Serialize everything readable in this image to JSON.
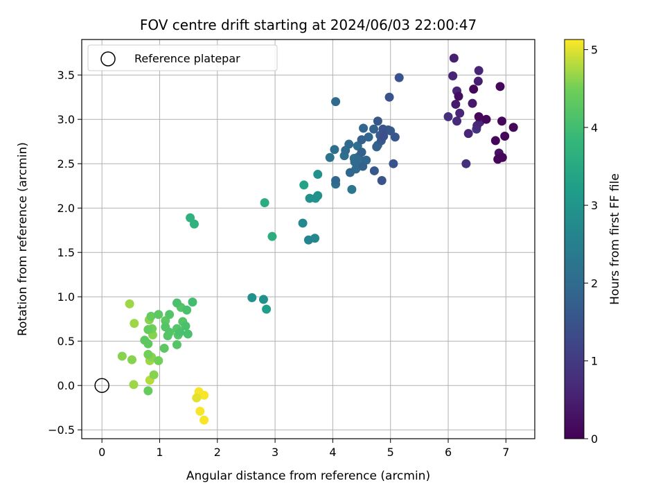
{
  "chart_data": {
    "type": "scatter",
    "title": "FOV centre drift starting at 2024/06/03 22:00:47",
    "xlabel": "Angular distance from reference (arcmin)",
    "ylabel": "Rotation from reference (arcmin)",
    "xlim": [
      -0.35,
      7.5
    ],
    "ylim": [
      -0.6,
      3.9
    ],
    "x_ticks": [
      0,
      1,
      2,
      3,
      4,
      5,
      6,
      7
    ],
    "x_tick_labels": [
      "0",
      "1",
      "2",
      "3",
      "4",
      "5",
      "6",
      "7"
    ],
    "y_ticks": [
      -0.5,
      0.0,
      0.5,
      1.0,
      1.5,
      2.0,
      2.5,
      3.0,
      3.5
    ],
    "y_tick_labels": [
      "−0.5",
      "0.0",
      "0.5",
      "1.0",
      "1.5",
      "2.0",
      "2.5",
      "3.0",
      "3.5"
    ],
    "grid": true,
    "legend": {
      "label": "Reference platepar",
      "placement": "top-left"
    },
    "reference_point": {
      "x": 0,
      "y": 0
    },
    "colorbar": {
      "label": "Hours from first FF file",
      "colormap": "viridis",
      "range": [
        0,
        5.13
      ],
      "ticks": [
        0,
        1,
        2,
        3,
        4,
        5
      ],
      "tick_labels": [
        "0",
        "1",
        "2",
        "3",
        "4",
        "5"
      ]
    },
    "points": [
      {
        "x": 6.1,
        "y": 3.69,
        "c": 0.5
      },
      {
        "x": 6.08,
        "y": 3.49,
        "c": 0.6
      },
      {
        "x": 6.53,
        "y": 3.55,
        "c": 0.6
      },
      {
        "x": 6.52,
        "y": 3.43,
        "c": 0.5
      },
      {
        "x": 6.44,
        "y": 3.34,
        "c": 0.1
      },
      {
        "x": 6.9,
        "y": 3.37,
        "c": 0.1
      },
      {
        "x": 6.15,
        "y": 3.32,
        "c": 0.6
      },
      {
        "x": 6.18,
        "y": 3.26,
        "c": 0.2
      },
      {
        "x": 6.13,
        "y": 3.17,
        "c": 0.4
      },
      {
        "x": 6.42,
        "y": 3.18,
        "c": 0.4
      },
      {
        "x": 6.2,
        "y": 3.07,
        "c": 0.6
      },
      {
        "x": 6.0,
        "y": 3.03,
        "c": 0.8
      },
      {
        "x": 6.53,
        "y": 3.03,
        "c": 0.1
      },
      {
        "x": 6.66,
        "y": 3.0,
        "c": 0.1
      },
      {
        "x": 6.15,
        "y": 2.98,
        "c": 0.7
      },
      {
        "x": 6.55,
        "y": 2.97,
        "c": 0.6
      },
      {
        "x": 6.93,
        "y": 2.98,
        "c": 0.1
      },
      {
        "x": 6.5,
        "y": 2.93,
        "c": 0.7
      },
      {
        "x": 7.13,
        "y": 2.91,
        "c": 0.1
      },
      {
        "x": 6.49,
        "y": 2.89,
        "c": 0.9
      },
      {
        "x": 6.35,
        "y": 2.84,
        "c": 0.6
      },
      {
        "x": 6.98,
        "y": 2.81,
        "c": 0.1
      },
      {
        "x": 6.82,
        "y": 2.76,
        "c": 0.1
      },
      {
        "x": 6.88,
        "y": 2.62,
        "c": 0.3
      },
      {
        "x": 6.9,
        "y": 2.58,
        "c": 0.2
      },
      {
        "x": 6.94,
        "y": 2.57,
        "c": 0.1
      },
      {
        "x": 6.86,
        "y": 2.55,
        "c": 0.1
      },
      {
        "x": 6.31,
        "y": 2.5,
        "c": 0.8
      },
      {
        "x": 5.15,
        "y": 3.47,
        "c": 1.5
      },
      {
        "x": 4.98,
        "y": 3.25,
        "c": 1.5
      },
      {
        "x": 4.05,
        "y": 3.2,
        "c": 2.0
      },
      {
        "x": 4.78,
        "y": 2.98,
        "c": 1.6
      },
      {
        "x": 4.53,
        "y": 2.9,
        "c": 1.9
      },
      {
        "x": 4.71,
        "y": 2.89,
        "c": 1.8
      },
      {
        "x": 4.87,
        "y": 2.89,
        "c": 1.5
      },
      {
        "x": 4.96,
        "y": 2.88,
        "c": 1.6
      },
      {
        "x": 5.0,
        "y": 2.87,
        "c": 1.7
      },
      {
        "x": 4.82,
        "y": 2.82,
        "c": 1.7
      },
      {
        "x": 4.88,
        "y": 2.81,
        "c": 1.4
      },
      {
        "x": 5.08,
        "y": 2.8,
        "c": 1.6
      },
      {
        "x": 4.62,
        "y": 2.8,
        "c": 1.9
      },
      {
        "x": 4.5,
        "y": 2.77,
        "c": 1.8
      },
      {
        "x": 4.84,
        "y": 2.76,
        "c": 1.6
      },
      {
        "x": 4.28,
        "y": 2.72,
        "c": 2.0
      },
      {
        "x": 4.43,
        "y": 2.7,
        "c": 2.1
      },
      {
        "x": 4.78,
        "y": 2.71,
        "c": 1.9
      },
      {
        "x": 4.76,
        "y": 2.69,
        "c": 1.8
      },
      {
        "x": 4.03,
        "y": 2.66,
        "c": 2.1
      },
      {
        "x": 4.22,
        "y": 2.65,
        "c": 2.0
      },
      {
        "x": 4.5,
        "y": 2.63,
        "c": 1.8
      },
      {
        "x": 4.2,
        "y": 2.59,
        "c": 2.1
      },
      {
        "x": 4.45,
        "y": 2.58,
        "c": 2.0
      },
      {
        "x": 3.95,
        "y": 2.57,
        "c": 2.2
      },
      {
        "x": 4.37,
        "y": 2.56,
        "c": 2.1
      },
      {
        "x": 4.58,
        "y": 2.54,
        "c": 1.9
      },
      {
        "x": 4.38,
        "y": 2.52,
        "c": 2.0
      },
      {
        "x": 4.48,
        "y": 2.5,
        "c": 2.1
      },
      {
        "x": 5.05,
        "y": 2.5,
        "c": 1.5
      },
      {
        "x": 4.52,
        "y": 2.47,
        "c": 1.8
      },
      {
        "x": 4.4,
        "y": 2.44,
        "c": 2.0
      },
      {
        "x": 4.3,
        "y": 2.4,
        "c": 1.9
      },
      {
        "x": 4.72,
        "y": 2.42,
        "c": 1.6
      },
      {
        "x": 4.05,
        "y": 2.31,
        "c": 1.9
      },
      {
        "x": 4.85,
        "y": 2.31,
        "c": 1.5
      },
      {
        "x": 4.05,
        "y": 2.27,
        "c": 2.1
      },
      {
        "x": 4.33,
        "y": 2.21,
        "c": 2.3
      },
      {
        "x": 3.74,
        "y": 2.38,
        "c": 2.9
      },
      {
        "x": 3.5,
        "y": 2.26,
        "c": 3.3
      },
      {
        "x": 3.74,
        "y": 2.14,
        "c": 2.9
      },
      {
        "x": 3.6,
        "y": 2.11,
        "c": 2.9
      },
      {
        "x": 3.7,
        "y": 2.11,
        "c": 3.0
      },
      {
        "x": 2.82,
        "y": 2.06,
        "c": 3.6
      },
      {
        "x": 1.53,
        "y": 1.89,
        "c": 3.7
      },
      {
        "x": 1.6,
        "y": 1.82,
        "c": 3.7
      },
      {
        "x": 3.48,
        "y": 1.83,
        "c": 2.7
      },
      {
        "x": 2.95,
        "y": 1.68,
        "c": 3.6
      },
      {
        "x": 3.69,
        "y": 1.66,
        "c": 2.7
      },
      {
        "x": 3.58,
        "y": 1.64,
        "c": 2.6
      },
      {
        "x": 2.6,
        "y": 0.99,
        "c": 2.9
      },
      {
        "x": 2.8,
        "y": 0.97,
        "c": 2.9
      },
      {
        "x": 2.85,
        "y": 0.86,
        "c": 3.2
      },
      {
        "x": 0.48,
        "y": 0.92,
        "c": 4.7
      },
      {
        "x": 1.57,
        "y": 0.94,
        "c": 4.0
      },
      {
        "x": 1.3,
        "y": 0.93,
        "c": 4.1
      },
      {
        "x": 1.37,
        "y": 0.88,
        "c": 4.2
      },
      {
        "x": 1.47,
        "y": 0.85,
        "c": 4.1
      },
      {
        "x": 1.17,
        "y": 0.8,
        "c": 4.2
      },
      {
        "x": 0.98,
        "y": 0.8,
        "c": 4.3
      },
      {
        "x": 0.85,
        "y": 0.78,
        "c": 4.4
      },
      {
        "x": 1.1,
        "y": 0.73,
        "c": 4.3
      },
      {
        "x": 0.82,
        "y": 0.74,
        "c": 4.6
      },
      {
        "x": 1.4,
        "y": 0.72,
        "c": 4.2
      },
      {
        "x": 0.56,
        "y": 0.7,
        "c": 4.7
      },
      {
        "x": 1.45,
        "y": 0.67,
        "c": 4.1
      },
      {
        "x": 1.1,
        "y": 0.66,
        "c": 4.2
      },
      {
        "x": 1.3,
        "y": 0.64,
        "c": 4.2
      },
      {
        "x": 0.87,
        "y": 0.64,
        "c": 4.5
      },
      {
        "x": 0.8,
        "y": 0.63,
        "c": 4.4
      },
      {
        "x": 1.17,
        "y": 0.6,
        "c": 4.2
      },
      {
        "x": 1.35,
        "y": 0.6,
        "c": 4.1
      },
      {
        "x": 1.32,
        "y": 0.57,
        "c": 4.2
      },
      {
        "x": 1.49,
        "y": 0.58,
        "c": 4.1
      },
      {
        "x": 0.88,
        "y": 0.57,
        "c": 4.6
      },
      {
        "x": 1.14,
        "y": 0.56,
        "c": 4.2
      },
      {
        "x": 0.74,
        "y": 0.51,
        "c": 4.3
      },
      {
        "x": 0.8,
        "y": 0.47,
        "c": 4.3
      },
      {
        "x": 1.3,
        "y": 0.46,
        "c": 4.2
      },
      {
        "x": 1.08,
        "y": 0.42,
        "c": 4.3
      },
      {
        "x": 0.8,
        "y": 0.35,
        "c": 4.5
      },
      {
        "x": 0.35,
        "y": 0.33,
        "c": 4.6
      },
      {
        "x": 0.86,
        "y": 0.32,
        "c": 4.6
      },
      {
        "x": 0.52,
        "y": 0.29,
        "c": 4.6
      },
      {
        "x": 0.83,
        "y": 0.28,
        "c": 4.7
      },
      {
        "x": 0.98,
        "y": 0.28,
        "c": 4.5
      },
      {
        "x": 0.9,
        "y": 0.12,
        "c": 4.6
      },
      {
        "x": 0.83,
        "y": 0.06,
        "c": 4.8
      },
      {
        "x": 0.55,
        "y": 0.01,
        "c": 4.7
      },
      {
        "x": 0.8,
        "y": -0.06,
        "c": 4.4
      },
      {
        "x": 1.68,
        "y": -0.07,
        "c": 5.1
      },
      {
        "x": 1.77,
        "y": -0.11,
        "c": 5.1
      },
      {
        "x": 1.64,
        "y": -0.14,
        "c": 5.0
      },
      {
        "x": 1.7,
        "y": -0.29,
        "c": 5.1
      },
      {
        "x": 1.77,
        "y": -0.39,
        "c": 5.1
      }
    ]
  }
}
